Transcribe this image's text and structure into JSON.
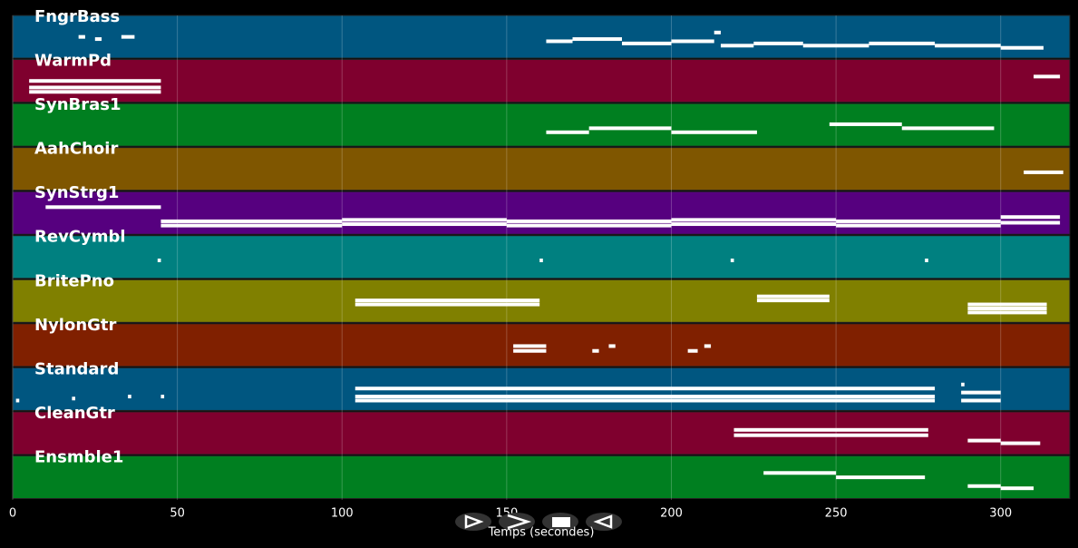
{
  "chart_data": {
    "type": "pianoroll",
    "xlabel": "Temps (secondes)",
    "xlim": [
      0,
      321
    ],
    "xticks": [
      0,
      50,
      100,
      150,
      200,
      250,
      300
    ],
    "grid": true,
    "note_color": "#ffffff",
    "tracks": [
      {
        "name": "FngrBass",
        "color": "#005680",
        "notes": [
          [
            20,
            22,
            40
          ],
          [
            25,
            27,
            39
          ],
          [
            33,
            37,
            40
          ],
          [
            162,
            170,
            38
          ],
          [
            170,
            185,
            39
          ],
          [
            185,
            200,
            37
          ],
          [
            200,
            213,
            38
          ],
          [
            213,
            215,
            42
          ],
          [
            215,
            225,
            36
          ],
          [
            225,
            240,
            37
          ],
          [
            240,
            260,
            36
          ],
          [
            260,
            280,
            37
          ],
          [
            280,
            300,
            36
          ],
          [
            300,
            313,
            35
          ]
        ]
      },
      {
        "name": "WarmPd",
        "color": "#7f002e",
        "notes": [
          [
            5,
            45,
            60
          ],
          [
            5,
            45,
            57
          ],
          [
            5,
            45,
            55
          ],
          [
            310,
            318,
            62
          ]
        ]
      },
      {
        "name": "SynBras1",
        "color": "#007f20",
        "notes": [
          [
            162,
            175,
            60
          ],
          [
            175,
            200,
            61
          ],
          [
            200,
            226,
            60
          ],
          [
            248,
            270,
            62
          ],
          [
            270,
            298,
            61
          ]
        ]
      },
      {
        "name": "AahChoir",
        "color": "#7f5600",
        "notes": [
          [
            307,
            319,
            60
          ]
        ]
      },
      {
        "name": "SynStrg1",
        "color": "#56007f",
        "notes": [
          [
            10,
            45,
            72
          ],
          [
            45,
            100,
            62
          ],
          [
            45,
            100,
            59
          ],
          [
            100,
            150,
            63
          ],
          [
            100,
            150,
            60
          ],
          [
            150,
            200,
            62
          ],
          [
            150,
            200,
            59
          ],
          [
            200,
            250,
            63
          ],
          [
            200,
            250,
            60
          ],
          [
            250,
            300,
            62
          ],
          [
            250,
            300,
            59
          ],
          [
            300,
            318,
            65
          ],
          [
            300,
            318,
            61
          ]
        ]
      },
      {
        "name": "RevCymbl",
        "color": "#008080",
        "notes": [
          [
            44,
            45,
            50
          ],
          [
            160,
            161,
            50
          ],
          [
            218,
            219,
            50
          ],
          [
            277,
            278,
            50
          ]
        ]
      },
      {
        "name": "BritePno",
        "color": "#808000",
        "notes": [
          [
            104,
            160,
            60
          ],
          [
            104,
            160,
            58
          ],
          [
            226,
            248,
            62
          ],
          [
            226,
            248,
            60
          ],
          [
            290,
            314,
            58
          ],
          [
            290,
            314,
            56
          ],
          [
            290,
            314,
            54
          ]
        ]
      },
      {
        "name": "NylonGtr",
        "color": "#802000",
        "notes": [
          [
            152,
            162,
            60
          ],
          [
            152,
            162,
            59
          ],
          [
            176,
            178,
            59
          ],
          [
            181,
            183,
            60
          ],
          [
            205,
            208,
            59
          ],
          [
            210,
            212,
            60
          ]
        ]
      },
      {
        "name": "Standard",
        "color": "#005680",
        "notes": [
          [
            1,
            2,
            54
          ],
          [
            18,
            19,
            55
          ],
          [
            35,
            36,
            56
          ],
          [
            45,
            46,
            56
          ],
          [
            104,
            280,
            60
          ],
          [
            104,
            280,
            56
          ],
          [
            104,
            280,
            54
          ],
          [
            288,
            289,
            62
          ],
          [
            288,
            300,
            58
          ],
          [
            288,
            300,
            54
          ]
        ]
      },
      {
        "name": "CleanGtr",
        "color": "#7f002e",
        "notes": [
          [
            219,
            278,
            60
          ],
          [
            219,
            278,
            58
          ],
          [
            290,
            300,
            56
          ],
          [
            300,
            312,
            55
          ]
        ]
      },
      {
        "name": "Ensmble1",
        "color": "#007f20",
        "notes": [
          [
            228,
            250,
            62
          ],
          [
            250,
            277,
            60
          ],
          [
            290,
            300,
            56
          ],
          [
            300,
            310,
            55
          ]
        ]
      }
    ]
  }
}
